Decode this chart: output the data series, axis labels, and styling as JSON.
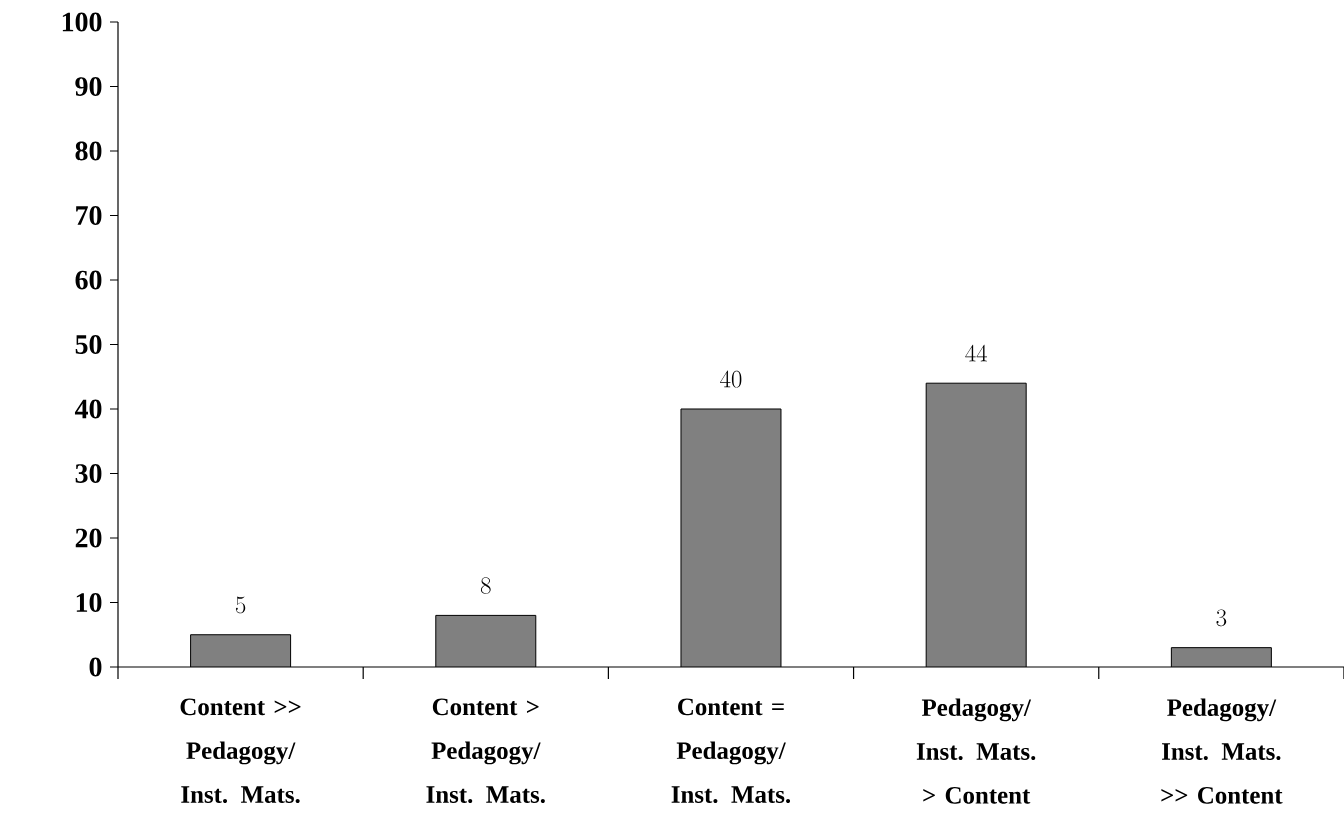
{
  "chart_data": {
    "type": "bar",
    "categories": [
      "Content >> Pedagogy/ Inst. Mats.",
      "Content > Pedagogy/ Inst. Mats.",
      "Content = Pedagogy/ Inst. Mats.",
      "Pedagogy/ Inst. Mats. > Content",
      "Pedagogy/ Inst. Mats. >> Content"
    ],
    "values": [
      5,
      8,
      40,
      44,
      3
    ],
    "color": "#808080",
    "data_labels": true,
    "ylim": [
      0,
      100
    ],
    "yticks": [
      0,
      10,
      20,
      30,
      40,
      50,
      60,
      70,
      80,
      90,
      100
    ],
    "grid": false,
    "legend": false
  }
}
